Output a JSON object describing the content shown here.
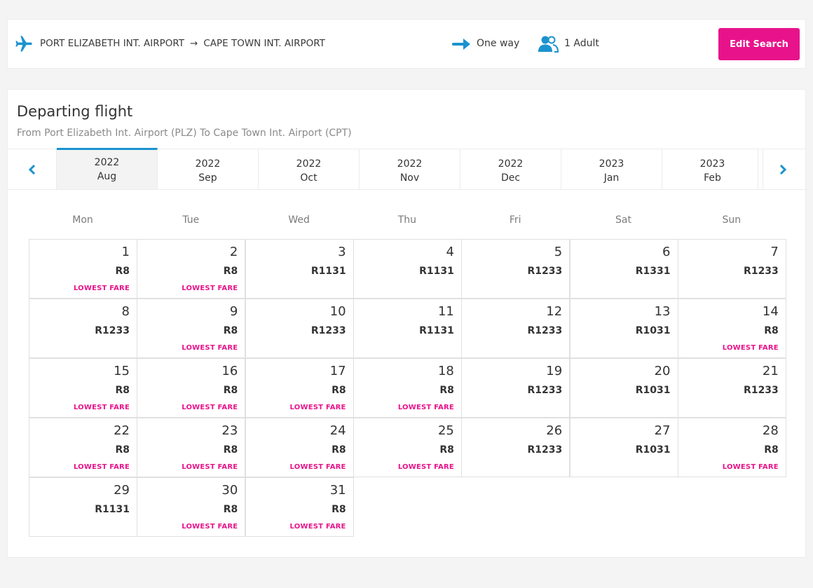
{
  "header": {
    "origin": "PORT ELIZABETH INT. AIRPORT",
    "arrow": "→",
    "destination": "CAPE TOWN INT. AIRPORT",
    "trip_type": "One way",
    "passengers": "1 Adult",
    "edit_button": "Edit Search"
  },
  "panel": {
    "title": "Departing flight",
    "subtitle": "From Port Elizabeth Int. Airport (PLZ) To Cape Town Int. Airport (CPT)"
  },
  "nav": {
    "prev_icon": "chevron-left-icon",
    "next_icon": "chevron-right-icon"
  },
  "months": [
    {
      "year": "2022",
      "month": "Aug",
      "active": true
    },
    {
      "year": "2022",
      "month": "Sep",
      "active": false
    },
    {
      "year": "2022",
      "month": "Oct",
      "active": false
    },
    {
      "year": "2022",
      "month": "Nov",
      "active": false
    },
    {
      "year": "2022",
      "month": "Dec",
      "active": false
    },
    {
      "year": "2023",
      "month": "Jan",
      "active": false
    },
    {
      "year": "2023",
      "month": "Feb",
      "active": false
    }
  ],
  "weekdays": [
    "Mon",
    "Tue",
    "Wed",
    "Thu",
    "Fri",
    "Sat",
    "Sun"
  ],
  "lowest_label": "LOWEST FARE",
  "days": [
    {
      "day": "1",
      "price": "R8",
      "lowest": true
    },
    {
      "day": "2",
      "price": "R8",
      "lowest": true
    },
    {
      "day": "3",
      "price": "R1131",
      "lowest": false
    },
    {
      "day": "4",
      "price": "R1131",
      "lowest": false
    },
    {
      "day": "5",
      "price": "R1233",
      "lowest": false
    },
    {
      "day": "6",
      "price": "R1331",
      "lowest": false
    },
    {
      "day": "7",
      "price": "R1233",
      "lowest": false
    },
    {
      "day": "8",
      "price": "R1233",
      "lowest": false
    },
    {
      "day": "9",
      "price": "R8",
      "lowest": true
    },
    {
      "day": "10",
      "price": "R1233",
      "lowest": false
    },
    {
      "day": "11",
      "price": "R1131",
      "lowest": false
    },
    {
      "day": "12",
      "price": "R1233",
      "lowest": false
    },
    {
      "day": "13",
      "price": "R1031",
      "lowest": false
    },
    {
      "day": "14",
      "price": "R8",
      "lowest": true
    },
    {
      "day": "15",
      "price": "R8",
      "lowest": true
    },
    {
      "day": "16",
      "price": "R8",
      "lowest": true
    },
    {
      "day": "17",
      "price": "R8",
      "lowest": true
    },
    {
      "day": "18",
      "price": "R8",
      "lowest": true
    },
    {
      "day": "19",
      "price": "R1233",
      "lowest": false
    },
    {
      "day": "20",
      "price": "R1031",
      "lowest": false
    },
    {
      "day": "21",
      "price": "R1233",
      "lowest": false
    },
    {
      "day": "22",
      "price": "R8",
      "lowest": true
    },
    {
      "day": "23",
      "price": "R8",
      "lowest": true
    },
    {
      "day": "24",
      "price": "R8",
      "lowest": true
    },
    {
      "day": "25",
      "price": "R8",
      "lowest": true
    },
    {
      "day": "26",
      "price": "R1233",
      "lowest": false
    },
    {
      "day": "27",
      "price": "R1031",
      "lowest": false
    },
    {
      "day": "28",
      "price": "R8",
      "lowest": true
    },
    {
      "day": "29",
      "price": "R1131",
      "lowest": false
    },
    {
      "day": "30",
      "price": "R8",
      "lowest": true
    },
    {
      "day": "31",
      "price": "R8",
      "lowest": true
    }
  ],
  "colors": {
    "accent_pink": "#e8138b",
    "accent_blue": "#1a93cf"
  }
}
